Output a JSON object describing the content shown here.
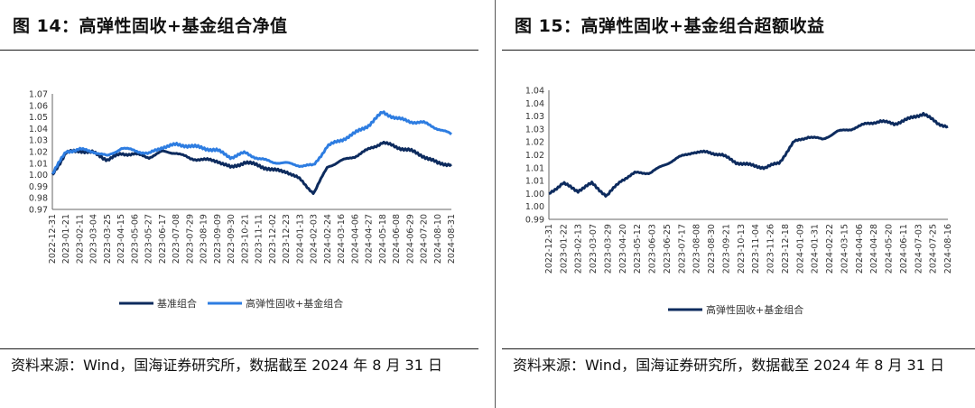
{
  "left": {
    "title": "图 14：高弹性固收+基金组合净值",
    "source": "资料来源：Wind，国海证券研究所，数据截至 2024 年 8 月 31 日",
    "colors": {
      "series_0": "#0d2b5e",
      "series_1": "#2e7de1"
    }
  },
  "right": {
    "title": "图 15：高弹性固收+基金组合超额收益",
    "source": "资料来源：Wind，国海证券研究所，数据截至 2024 年 8 月 31 日",
    "colors": {
      "series_0": "#0d2b5e"
    }
  },
  "chart_data": [
    {
      "type": "line",
      "title": "",
      "xlabel": "",
      "ylabel": "",
      "ylim": [
        0.97,
        1.07
      ],
      "yticks": [
        "1.07",
        "1.06",
        "1.05",
        "1.04",
        "1.03",
        "1.02",
        "1.01",
        "1.00",
        "0.99",
        "0.98",
        "0.97"
      ],
      "x_tick_labels": [
        "2022-12-31",
        "2023-01-21",
        "2023-02-11",
        "2023-03-04",
        "2023-03-25",
        "2023-04-15",
        "2023-05-06",
        "2023-05-27",
        "2023-06-17",
        "2023-07-08",
        "2023-07-29",
        "2023-08-19",
        "2023-09-09",
        "2023-09-30",
        "2023-10-21",
        "2023-11-11",
        "2023-12-02",
        "2023-12-23",
        "2024-01-13",
        "2024-02-03",
        "2024-02-24",
        "2024-03-16",
        "2024-04-06",
        "2024-04-27",
        "2024-05-18",
        "2024-06-08",
        "2024-06-29",
        "2024-07-20",
        "2024-08-10",
        "2024-08-31"
      ],
      "grid": false,
      "legend": "bottom",
      "series": [
        {
          "name": "基准组合",
          "x": [
            "2022-12-31",
            "2023-01-21",
            "2023-02-11",
            "2023-03-04",
            "2023-03-25",
            "2023-04-15",
            "2023-05-06",
            "2023-05-27",
            "2023-06-17",
            "2023-07-08",
            "2023-07-29",
            "2023-08-19",
            "2023-09-09",
            "2023-09-30",
            "2023-10-21",
            "2023-11-11",
            "2023-12-02",
            "2023-12-23",
            "2024-01-13",
            "2024-02-03",
            "2024-02-24",
            "2024-03-16",
            "2024-04-06",
            "2024-04-27",
            "2024-05-18",
            "2024-06-08",
            "2024-06-29",
            "2024-07-20",
            "2024-08-10",
            "2024-08-31"
          ],
          "values": [
            1.0,
            1.019,
            1.021,
            1.019,
            1.013,
            1.018,
            1.018,
            1.015,
            1.02,
            1.019,
            1.014,
            1.013,
            1.012,
            1.006,
            1.011,
            1.008,
            1.004,
            1.003,
            0.996,
            0.984,
            1.007,
            1.012,
            1.016,
            1.022,
            1.028,
            1.024,
            1.021,
            1.016,
            1.01,
            1.009
          ]
        },
        {
          "name": "高弹性固收+基金组合",
          "x": [
            "2022-12-31",
            "2023-01-21",
            "2023-02-11",
            "2023-03-04",
            "2023-03-25",
            "2023-04-15",
            "2023-05-06",
            "2023-05-27",
            "2023-06-17",
            "2023-07-08",
            "2023-07-29",
            "2023-08-19",
            "2023-09-09",
            "2023-09-30",
            "2023-10-21",
            "2023-11-11",
            "2023-12-02",
            "2023-12-23",
            "2024-01-13",
            "2024-02-03",
            "2024-02-24",
            "2024-03-16",
            "2024-04-06",
            "2024-04-27",
            "2024-05-18",
            "2024-06-08",
            "2024-06-29",
            "2024-07-20",
            "2024-08-10",
            "2024-08-31"
          ],
          "values": [
            1.001,
            1.02,
            1.022,
            1.02,
            1.016,
            1.023,
            1.021,
            1.018,
            1.024,
            1.026,
            1.025,
            1.023,
            1.021,
            1.015,
            1.019,
            1.014,
            1.011,
            1.01,
            1.008,
            1.008,
            1.025,
            1.03,
            1.036,
            1.043,
            1.054,
            1.049,
            1.046,
            1.045,
            1.04,
            1.035
          ]
        }
      ]
    },
    {
      "type": "line",
      "title": "",
      "xlabel": "",
      "ylabel": "",
      "ylim": [
        0.99,
        1.04
      ],
      "yticks": [
        "1.04",
        "1.04",
        "1.03",
        "1.03",
        "1.02",
        "1.02",
        "1.01",
        "1.01",
        "1.00",
        "1.00",
        "0.99"
      ],
      "x_tick_labels": [
        "2022-12-31",
        "2023-01-22",
        "2023-02-13",
        "2023-03-07",
        "2023-03-29",
        "2023-04-20",
        "2023-05-12",
        "2023-06-03",
        "2023-06-25",
        "2023-07-17",
        "2023-08-08",
        "2023-08-30",
        "2023-09-21",
        "2023-10-13",
        "2023-11-04",
        "2023-11-26",
        "2023-12-18",
        "2024-01-09",
        "2024-01-31",
        "2024-02-22",
        "2024-03-15",
        "2024-04-06",
        "2024-04-28",
        "2024-05-20",
        "2024-06-11",
        "2024-07-03",
        "2024-07-25",
        "2024-08-16"
      ],
      "grid": false,
      "legend": "bottom",
      "series": [
        {
          "name": "高弹性固收+基金组合",
          "x": [
            "2022-12-31",
            "2023-01-22",
            "2023-02-13",
            "2023-03-07",
            "2023-03-29",
            "2023-04-20",
            "2023-05-12",
            "2023-06-03",
            "2023-06-25",
            "2023-07-17",
            "2023-08-08",
            "2023-08-30",
            "2023-09-21",
            "2023-10-13",
            "2023-11-04",
            "2023-11-26",
            "2023-12-18",
            "2024-01-09",
            "2024-01-31",
            "2024-02-22",
            "2024-03-15",
            "2024-04-06",
            "2024-04-28",
            "2024-05-20",
            "2024-06-11",
            "2024-07-03",
            "2024-07-25",
            "2024-08-16",
            "2024-08-31"
          ],
          "values": [
            1.0,
            1.004,
            1.001,
            1.004,
            0.999,
            1.005,
            1.008,
            1.008,
            1.011,
            1.014,
            1.016,
            1.016,
            1.015,
            1.012,
            1.011,
            1.01,
            1.012,
            1.02,
            1.022,
            1.021,
            1.024,
            1.025,
            1.027,
            1.028,
            1.027,
            1.029,
            1.031,
            1.027,
            1.026
          ]
        }
      ]
    }
  ]
}
